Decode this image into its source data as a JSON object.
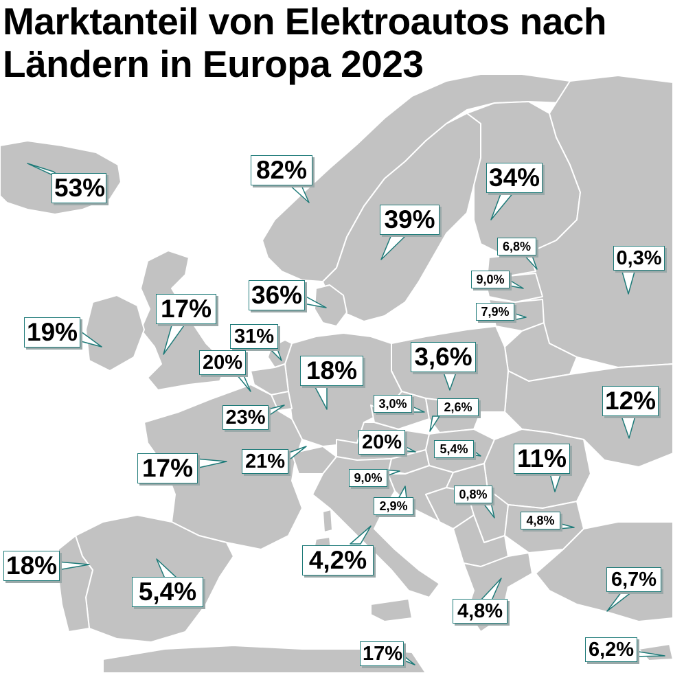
{
  "title_line1": "Marktanteil von Elektroautos nach",
  "title_line2": "Ländern in Europa 2023",
  "colors": {
    "land": "#c2c2c2",
    "border": "#ffffff",
    "sea": "#ffffff",
    "callout_border": "#1d7a78"
  },
  "labels": {
    "iceland": "53%",
    "norway": "82%",
    "finland": "34%",
    "sweden": "39%",
    "estonia": "6,8%",
    "latvia": "9,0%",
    "lithuania": "7,9%",
    "russia": "0,3%",
    "denmark": "36%",
    "uk": "17%",
    "ireland": "19%",
    "netherlands": "31%",
    "belgium": "20%",
    "germany": "18%",
    "poland": "3,6%",
    "luxembourg": "23%",
    "czechia": "3,0%",
    "slovakia": "2,6%",
    "ukraine": "12%",
    "switzerland": "21%",
    "austria": "20%",
    "hungary": "5,4%",
    "france": "17%",
    "romania": "11%",
    "slovenia": "9,0%",
    "croatia": "2,9%",
    "serbia": "0,8%",
    "bulgaria": "4,8%",
    "portugal": "18%",
    "spain": "5,4%",
    "italy": "4,2%",
    "turkey": "6,7%",
    "greece": "4,8%",
    "malta": "17%",
    "cyprus": "6,2%"
  }
}
